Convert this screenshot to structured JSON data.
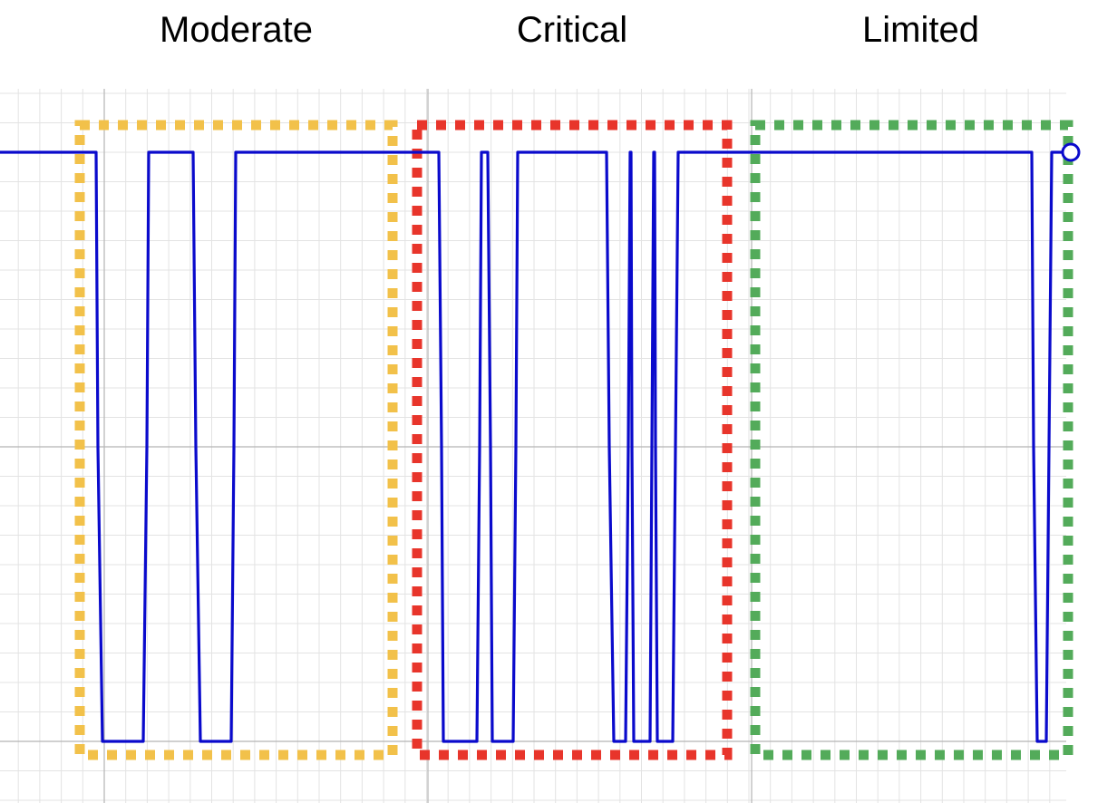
{
  "chart_data": {
    "type": "line",
    "title": "",
    "xlabel": "",
    "ylabel": "",
    "grid": true,
    "xlim": [
      0,
      1180
    ],
    "ylim": [
      0,
      1
    ],
    "line_color": "#0a0acc",
    "regions": [
      {
        "label": "Moderate",
        "color": "#f2c14a",
        "x_range": [
          88,
          433
        ]
      },
      {
        "label": "Critical",
        "color": "#e8352b",
        "x_range": [
          460,
          802
        ]
      },
      {
        "label": "Limited",
        "color": "#53ab5a",
        "x_range": [
          833,
          1180
        ]
      }
    ],
    "series": [
      {
        "x": [
          0,
          106,
          108,
          113,
          158,
          162,
          164,
          213,
          216,
          221,
          255,
          258,
          260,
          484,
          487,
          489,
          526,
          529,
          531,
          538,
          541,
          543,
          566,
          569,
          571,
          669,
          672,
          677,
          690,
          693,
          695,
          696,
          697,
          699,
          701,
          717,
          719,
          721,
          722,
          723,
          725,
          727,
          742,
          745,
          748,
          751,
          1138,
          1140,
          1144,
          1154,
          1157,
          1160,
          1175
        ],
        "y": [
          1,
          1,
          0.5,
          0,
          0,
          0.5,
          1,
          1,
          0.5,
          0,
          0,
          0.5,
          1,
          1,
          0.5,
          0,
          0,
          0.5,
          1,
          1,
          0.5,
          0,
          0,
          0.5,
          1,
          1,
          0.5,
          0,
          0,
          0.5,
          1,
          1,
          0.5,
          0,
          0,
          0,
          0.5,
          1,
          1,
          0.5,
          0,
          0,
          0,
          0.5,
          1,
          1,
          1,
          0.5,
          0,
          0,
          0.5,
          1,
          1
        ]
      }
    ]
  }
}
